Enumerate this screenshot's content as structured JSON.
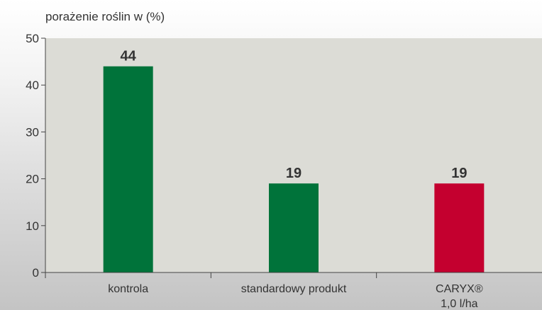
{
  "chart_data": {
    "type": "bar",
    "ylabel": "porażenie roślin w (%)",
    "ylim": [
      0,
      50
    ],
    "yticks": [
      0,
      10,
      20,
      30,
      40,
      50
    ],
    "grid": false,
    "categories": [
      {
        "label": "kontrola",
        "label2": ""
      },
      {
        "label": "standardowy produkt",
        "label2": ""
      },
      {
        "label": "CARYX®",
        "label2": "1,0 l/ha"
      }
    ],
    "values": [
      44,
      19,
      19
    ],
    "value_labels": [
      "44",
      "19",
      "19"
    ],
    "colors": [
      "#00733a",
      "#00733a",
      "#c4002f"
    ],
    "brand_color": "#c4002f",
    "plot_background": "#dcdcd6"
  }
}
